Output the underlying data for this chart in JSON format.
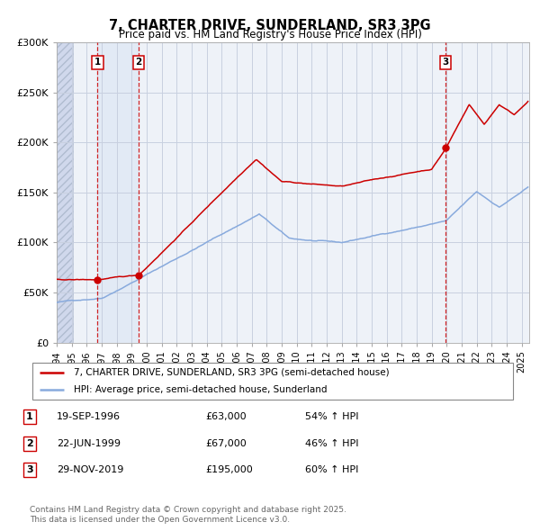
{
  "title": "7, CHARTER DRIVE, SUNDERLAND, SR3 3PG",
  "subtitle": "Price paid vs. HM Land Registry's House Price Index (HPI)",
  "ylim": [
    0,
    300000
  ],
  "yticks": [
    0,
    50000,
    100000,
    150000,
    200000,
    250000,
    300000
  ],
  "ytick_labels": [
    "£0",
    "£50K",
    "£100K",
    "£150K",
    "£200K",
    "£250K",
    "£300K"
  ],
  "xlim_start": 1994.0,
  "xlim_end": 2025.5,
  "background_color": "#ffffff",
  "plot_bg_color": "#eef2f8",
  "grid_color": "#c8d0e0",
  "transactions": [
    {
      "num": 1,
      "date_num": 1996.72,
      "price": 63000,
      "label": "1",
      "date_str": "19-SEP-1996",
      "price_str": "£63,000",
      "hpi_str": "54% ↑ HPI"
    },
    {
      "num": 2,
      "date_num": 1999.47,
      "price": 67000,
      "label": "2",
      "date_str": "22-JUN-1999",
      "price_str": "£67,000",
      "hpi_str": "46% ↑ HPI"
    },
    {
      "num": 3,
      "date_num": 2019.91,
      "price": 195000,
      "label": "3",
      "date_str": "29-NOV-2019",
      "price_str": "£195,000",
      "hpi_str": "60% ↑ HPI"
    }
  ],
  "legend_line1": "7, CHARTER DRIVE, SUNDERLAND, SR3 3PG (semi-detached house)",
  "legend_line2": "HPI: Average price, semi-detached house, Sunderland",
  "footer1": "Contains HM Land Registry data © Crown copyright and database right 2025.",
  "footer2": "This data is licensed under the Open Government Licence v3.0.",
  "line_color_property": "#cc0000",
  "line_color_hpi": "#88aadd",
  "hatch_region_end": 1995.08,
  "shade_region_1_start": 1996.72,
  "shade_region_1_end": 1999.47
}
